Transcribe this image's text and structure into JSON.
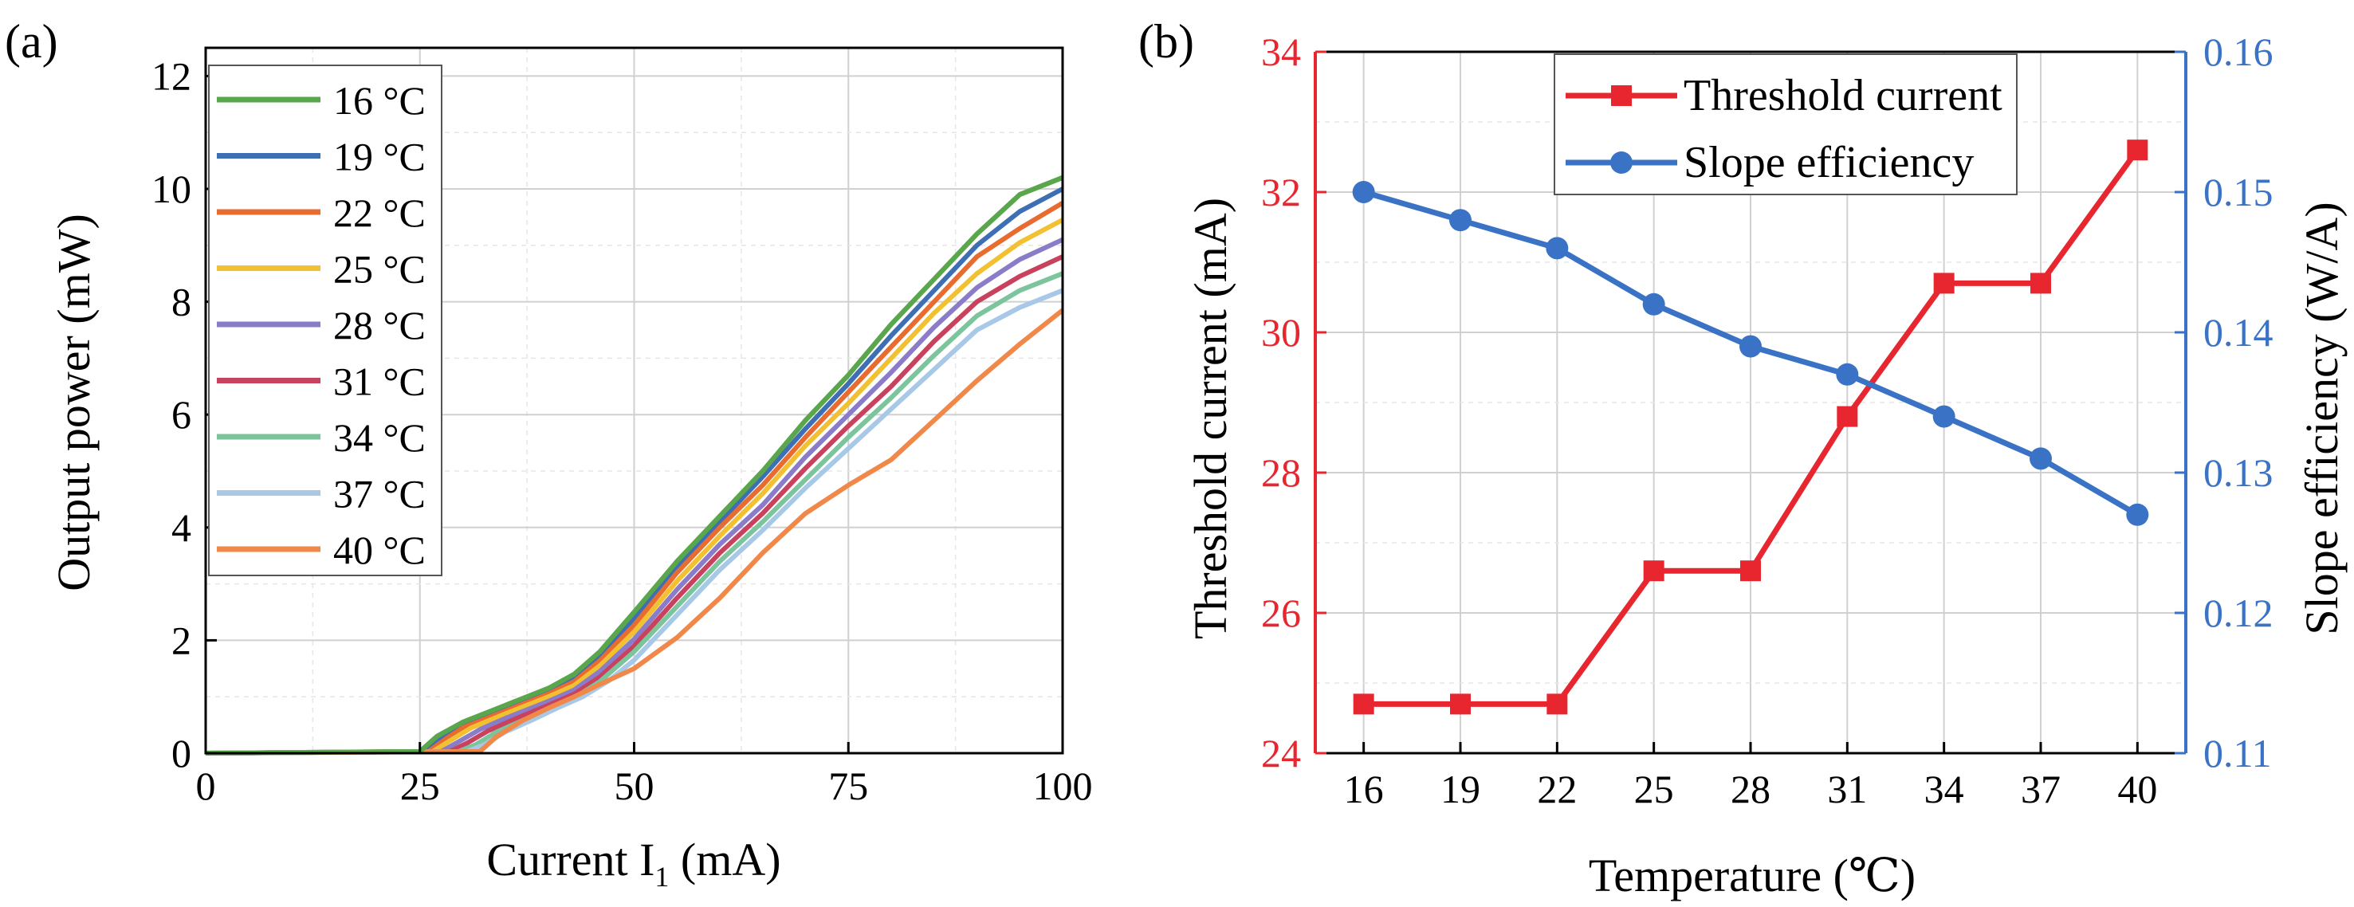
{
  "chart_data": [
    {
      "panel": "(a)",
      "type": "line",
      "xlabel_main": "Current I",
      "xlabel_sub": "1",
      "xlabel_unit": " (mA)",
      "ylabel": "Output power (mW)",
      "xlim": [
        0,
        100
      ],
      "ylim": [
        0,
        12.5
      ],
      "xticks": [
        "0",
        "25",
        "50",
        "75",
        "100"
      ],
      "yticks": [
        "0",
        "2",
        "4",
        "6",
        "8",
        "10",
        "12"
      ],
      "grid": true,
      "legend_position": "top-left",
      "series": [
        {
          "name": "16 °C",
          "color": "#5aa64c",
          "x": [
            0,
            25,
            27,
            30,
            35,
            40,
            43,
            46,
            50,
            55,
            60,
            65,
            70,
            75,
            80,
            85,
            90,
            95,
            100
          ],
          "y": [
            0,
            0.03,
            0.3,
            0.55,
            0.85,
            1.15,
            1.4,
            1.8,
            2.5,
            3.4,
            4.2,
            5.0,
            5.9,
            6.7,
            7.6,
            8.4,
            9.2,
            9.9,
            10.2
          ]
        },
        {
          "name": "19 °C",
          "color": "#3e6fb4",
          "x": [
            0,
            25.5,
            27.5,
            30,
            35,
            40,
            43,
            46,
            50,
            55,
            60,
            65,
            70,
            75,
            80,
            85,
            90,
            95,
            100
          ],
          "y": [
            0,
            0.03,
            0.28,
            0.5,
            0.8,
            1.1,
            1.33,
            1.72,
            2.38,
            3.3,
            4.1,
            4.9,
            5.75,
            6.55,
            7.4,
            8.2,
            9.0,
            9.6,
            10.0
          ]
        },
        {
          "name": "22 °C",
          "color": "#e86c30",
          "x": [
            0,
            26,
            28,
            30,
            35,
            40,
            43,
            46,
            50,
            55,
            60,
            65,
            70,
            75,
            80,
            85,
            90,
            95,
            100
          ],
          "y": [
            0,
            0.03,
            0.25,
            0.45,
            0.75,
            1.05,
            1.27,
            1.64,
            2.27,
            3.2,
            4.0,
            4.75,
            5.6,
            6.4,
            7.2,
            8.0,
            8.8,
            9.3,
            9.75
          ]
        },
        {
          "name": "25 °C",
          "color": "#f2c132",
          "x": [
            0,
            26.5,
            28.5,
            31,
            35,
            40,
            43,
            46,
            50,
            55,
            60,
            65,
            70,
            75,
            80,
            85,
            90,
            95,
            100
          ],
          "y": [
            0,
            0.03,
            0.22,
            0.45,
            0.7,
            1.0,
            1.2,
            1.55,
            2.15,
            3.05,
            3.85,
            4.6,
            5.45,
            6.2,
            7.0,
            7.8,
            8.5,
            9.05,
            9.45
          ]
        },
        {
          "name": "28 °C",
          "color": "#8a7cc8",
          "x": [
            0,
            27.5,
            29.5,
            32,
            35,
            40,
            43,
            46,
            50,
            55,
            60,
            65,
            70,
            75,
            80,
            85,
            90,
            95,
            100
          ],
          "y": [
            0,
            0.03,
            0.2,
            0.42,
            0.62,
            0.92,
            1.12,
            1.45,
            2.02,
            2.9,
            3.7,
            4.4,
            5.25,
            6.0,
            6.75,
            7.55,
            8.25,
            8.75,
            9.1
          ]
        },
        {
          "name": "31 °C",
          "color": "#c9425d",
          "x": [
            0,
            28.5,
            30.5,
            33,
            36,
            40,
            43,
            46,
            50,
            55,
            60,
            65,
            70,
            75,
            80,
            85,
            90,
            95,
            100
          ],
          "y": [
            0,
            0.03,
            0.18,
            0.4,
            0.6,
            0.85,
            1.05,
            1.35,
            1.9,
            2.75,
            3.55,
            4.25,
            5.05,
            5.8,
            6.5,
            7.3,
            8.0,
            8.45,
            8.8
          ]
        },
        {
          "name": "34 °C",
          "color": "#7cc49c",
          "x": [
            0,
            29.5,
            31.5,
            34,
            37,
            40,
            43,
            46,
            50,
            55,
            60,
            65,
            70,
            75,
            80,
            85,
            90,
            95,
            100
          ],
          "y": [
            0,
            0.03,
            0.15,
            0.38,
            0.58,
            0.78,
            0.98,
            1.27,
            1.8,
            2.6,
            3.4,
            4.1,
            4.85,
            5.6,
            6.3,
            7.05,
            7.75,
            8.2,
            8.5
          ]
        },
        {
          "name": "37 °C",
          "color": "#a8c8e8",
          "x": [
            0,
            30.5,
            32.5,
            35,
            38,
            41,
            44,
            47,
            50,
            55,
            60,
            65,
            70,
            75,
            80,
            85,
            90,
            95,
            100
          ],
          "y": [
            0,
            0.03,
            0.15,
            0.38,
            0.58,
            0.8,
            1.0,
            1.28,
            1.65,
            2.45,
            3.25,
            3.95,
            4.7,
            5.4,
            6.1,
            6.8,
            7.5,
            7.9,
            8.2
          ]
        },
        {
          "name": "40 °C",
          "color": "#f0884a",
          "x": [
            0,
            32,
            34,
            37,
            40,
            43,
            46,
            50,
            55,
            60,
            65,
            70,
            75,
            80,
            85,
            90,
            95,
            100
          ],
          "y": [
            0,
            0.03,
            0.3,
            0.58,
            0.8,
            1.0,
            1.22,
            1.5,
            2.05,
            2.75,
            3.55,
            4.25,
            4.75,
            5.2,
            5.9,
            6.6,
            7.25,
            7.85
          ]
        }
      ]
    },
    {
      "panel": "(b)",
      "type": "line",
      "xlabel": "Temperature (℃)",
      "ylabel_left": "Threshold current (mA)",
      "ylabel_right": "Slope efficiency (W/A)",
      "xlim": [
        14.5,
        41.5
      ],
      "ylim_left": [
        24,
        34
      ],
      "ylim_right": [
        0.11,
        0.16
      ],
      "xticks": [
        "16",
        "19",
        "22",
        "25",
        "28",
        "31",
        "34",
        "37",
        "40"
      ],
      "yticks_left": [
        "24",
        "26",
        "28",
        "30",
        "32",
        "34"
      ],
      "yticks_right": [
        "0.11",
        "0.12",
        "0.13",
        "0.14",
        "0.15",
        "0.16"
      ],
      "grid": true,
      "legend_position": "top-center",
      "left_axis_color": "#e8262f",
      "right_axis_color": "#3a72c6",
      "series": [
        {
          "name": "Threshold current",
          "axis": "left",
          "marker": "square",
          "color": "#e8262f",
          "x": [
            16,
            19,
            22,
            25,
            28,
            31,
            34,
            37,
            40
          ],
          "y": [
            24.7,
            24.7,
            24.7,
            26.6,
            26.6,
            28.8,
            30.7,
            30.7,
            32.6
          ]
        },
        {
          "name": "Slope efficiency",
          "axis": "right",
          "marker": "circle",
          "color": "#3a72c6",
          "x": [
            16,
            19,
            22,
            25,
            28,
            31,
            34,
            37,
            40
          ],
          "y": [
            0.15,
            0.148,
            0.146,
            0.142,
            0.139,
            0.137,
            0.134,
            0.131,
            0.127
          ]
        }
      ]
    }
  ]
}
